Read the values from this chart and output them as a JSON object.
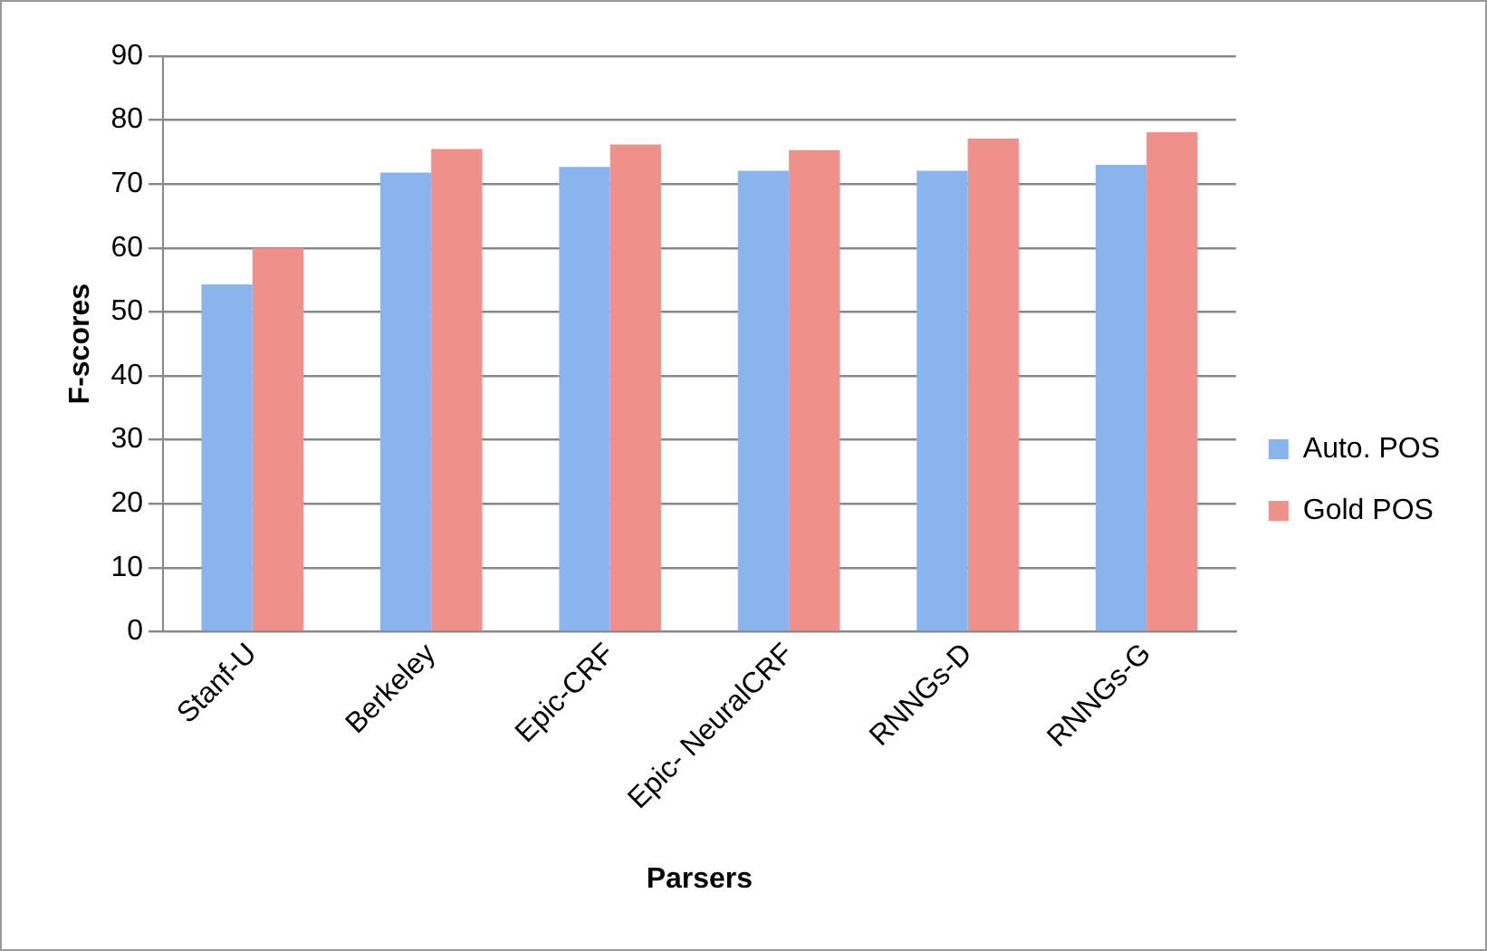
{
  "chart_data": {
    "type": "bar",
    "xlabel": "Parsers",
    "ylabel": "F-scores",
    "categories": [
      "Stanf-U",
      "Berkeley",
      "Epic-CRF",
      "Epic- NeuralCRF",
      "RNNGs-D",
      "RNNGs-G"
    ],
    "series": [
      {
        "name": "Auto. POS",
        "color": "#8ab4ee",
        "values": [
          54.3,
          71.8,
          72.7,
          72.1,
          72.1,
          73.0
        ]
      },
      {
        "name": "Gold POS",
        "color": "#f0908a",
        "values": [
          60.0,
          75.5,
          76.2,
          75.3,
          77.1,
          78.1
        ]
      }
    ],
    "ylim": [
      0,
      90
    ],
    "yticks": [
      0,
      10,
      20,
      30,
      40,
      50,
      60,
      70,
      80,
      90
    ],
    "grid": "y",
    "legend": "right"
  }
}
